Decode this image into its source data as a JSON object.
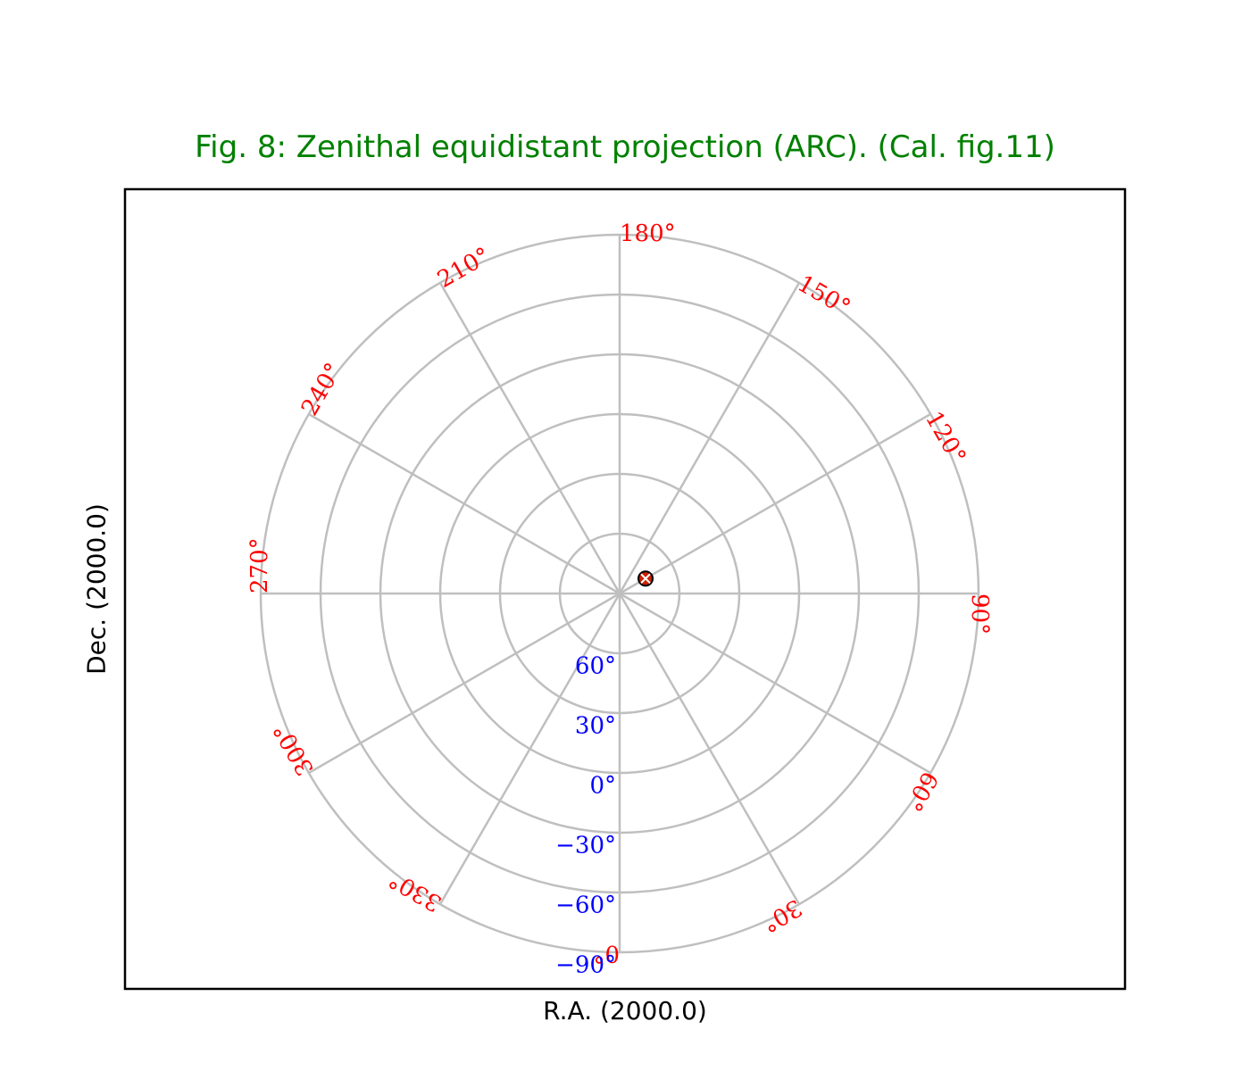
{
  "title": "Fig. 8: Zenithal equidistant projection (ARC). (Cal. fig.11)",
  "colors": {
    "title": "#008000",
    "grid": "#bfbfbf",
    "ra_ticks": "#ff0000",
    "dec_ticks": "#0000ff",
    "marker_fill": "#cc2200",
    "marker_edge": "#000000"
  },
  "chart_data": {
    "type": "scatter",
    "projection": "ARC",
    "title": "Fig. 8: Zenithal equidistant projection (ARC). (Cal. fig.11)",
    "xlabel": "R.A. (2000.0)",
    "ylabel": "Dec. (2000.0)",
    "grid": true,
    "ra_meridians": [
      0,
      30,
      60,
      90,
      120,
      150,
      180,
      210,
      240,
      270,
      300,
      330
    ],
    "ra_tick_labels": [
      "0",
      "30",
      "60",
      "90",
      "120",
      "150",
      "180",
      "210",
      "240",
      "270",
      "300",
      "330"
    ],
    "dec_parallels": [
      90,
      60,
      30,
      0,
      -30,
      -60,
      -90
    ],
    "dec_tick_labels": [
      "60",
      "30",
      "0",
      "−30",
      "−60",
      "−90"
    ],
    "dec_tick_values": [
      60,
      30,
      0,
      -30,
      -60,
      -90
    ],
    "degree_symbol": "°",
    "points": [
      {
        "ra": 120,
        "dec": 75,
        "marker": "circle-x"
      }
    ]
  }
}
